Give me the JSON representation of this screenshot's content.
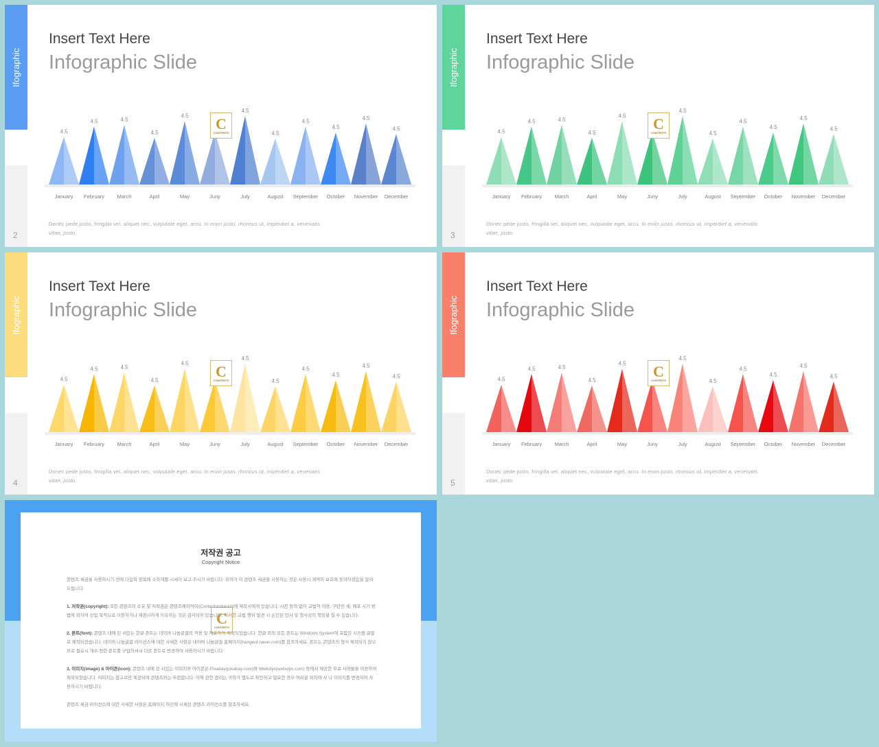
{
  "slides": [
    {
      "side_label": "Ifographic",
      "page_number": "2",
      "title": "Insert Text Here",
      "subtitle": "Infographic Slide",
      "body_plain": "Donec pede justo, fringilla  vel, aliquet nec, vulputate eget, arcu. ",
      "body_italic": "In enim justo, rhoncus ut, imperdiet a, venenatis vitae, justo.",
      "logo": {
        "letter": "C",
        "text": "CONTENTS"
      },
      "accent": "#5b9cf5",
      "colors": [
        "#8fb7f3",
        "#2f7ff3",
        "#6fa2ee",
        "#6690d8",
        "#5c8bd9",
        "#93acde",
        "#4f7fd0",
        "#a5c6ee",
        "#8bb2f0",
        "#3e89f2",
        "#5a80c9",
        "#5c86cf"
      ]
    },
    {
      "side_label": "Ifographic",
      "page_number": "3",
      "title": "Insert Text Here",
      "subtitle": "Infographic Slide",
      "body_plain": "Donec pede justo, fringilla  vel, aliquet nec, vulputate eget, arcu. ",
      "body_italic": "In enim justo, rhoncus ut, imperdiet a, venenatis vitae, justo.",
      "logo": {
        "letter": "C",
        "text": "CONTENTS"
      },
      "accent": "#5ed59a",
      "colors": [
        "#8fddb4",
        "#47c787",
        "#6ed39f",
        "#3cc47e",
        "#8bddb3",
        "#3dc47c",
        "#5ed195",
        "#8fdeb5",
        "#77d6a5",
        "#4ccc8a",
        "#3fc67f",
        "#8fddb6"
      ]
    },
    {
      "side_label": "Ifographic",
      "page_number": "4",
      "title": "Insert Text Here",
      "subtitle": "Infographic Slide",
      "body_plain": "Donec pede justo, fringilla  vel, aliquet nec, vulputate eget, arcu. ",
      "body_italic": "In enim justo, rhoncus ut, imperdiet a, venenatis vitae, justo.",
      "logo": {
        "letter": "C",
        "text": "CONTENTS"
      },
      "accent": "#fddc7e",
      "colors": [
        "#fed86b",
        "#f7b500",
        "#fdd667",
        "#f9be18",
        "#fdd560",
        "#fcc939",
        "#fee4a0",
        "#fdd567",
        "#fdcc42",
        "#f8bb11",
        "#f9c11f",
        "#fdd464"
      ]
    },
    {
      "side_label": "Ifographic",
      "page_number": "5",
      "title": "Insert Text Here",
      "subtitle": "Infographic Slide",
      "body_plain": "Donec pede justo, fringilla  vel, aliquet nec, vulputate eget, arcu. ",
      "body_italic": "In enim justo, rhoncus ut, imperdiet a, venenatis vitae, justo.",
      "logo": {
        "letter": "C",
        "text": "CONTENTS"
      },
      "accent": "#f9806b",
      "colors": [
        "#f4625c",
        "#e5060e",
        "#f67d77",
        "#f0685f",
        "#e52a1c",
        "#f6534d",
        "#f98279",
        "#fbc0bb",
        "#f6534d",
        "#e8070f",
        "#f6736b",
        "#e32b1b"
      ]
    }
  ],
  "chart_data": [
    {
      "type": "bar",
      "title": "",
      "xlabel": "",
      "ylabel": "",
      "categories": [
        "January",
        "February",
        "March",
        "April",
        "May",
        "Juny",
        "July",
        "August",
        "September",
        "October",
        "November",
        "December"
      ],
      "values": [
        4.5,
        4.5,
        4.5,
        4.5,
        4.5,
        4.5,
        4.5,
        4.5,
        4.5,
        4.5,
        4.5,
        4.5
      ],
      "labels": [
        "4.5",
        "4.5",
        "4.5",
        "4.5",
        "4.5",
        "4.5",
        "4.5",
        "4.5",
        "4.5",
        "4.5",
        "4.5",
        "4.5"
      ],
      "peak_heights": [
        0.63,
        0.77,
        0.79,
        0.62,
        0.84,
        0.7,
        0.91,
        0.61,
        0.77,
        0.69,
        0.81,
        0.67
      ],
      "grid": false,
      "legend": "none"
    },
    {
      "type": "bar",
      "title": "",
      "xlabel": "",
      "ylabel": "",
      "categories": [
        "January",
        "February",
        "March",
        "April",
        "May",
        "Juny",
        "July",
        "August",
        "September",
        "October",
        "November",
        "December"
      ],
      "values": [
        4.5,
        4.5,
        4.5,
        4.5,
        4.5,
        4.5,
        4.5,
        4.5,
        4.5,
        4.5,
        4.5,
        4.5
      ],
      "labels": [
        "4.5",
        "4.5",
        "4.5",
        "4.5",
        "4.5",
        "4.5",
        "4.5",
        "4.5",
        "4.5",
        "4.5",
        "4.5",
        "4.5"
      ],
      "peak_heights": [
        0.63,
        0.77,
        0.79,
        0.62,
        0.84,
        0.7,
        0.91,
        0.61,
        0.77,
        0.69,
        0.81,
        0.67
      ],
      "grid": false,
      "legend": "none"
    },
    {
      "type": "bar",
      "title": "",
      "xlabel": "",
      "ylabel": "",
      "categories": [
        "January",
        "February",
        "March",
        "April",
        "May",
        "Juny",
        "July",
        "August",
        "September",
        "October",
        "November",
        "December"
      ],
      "values": [
        4.5,
        4.5,
        4.5,
        4.5,
        4.5,
        4.5,
        4.5,
        4.5,
        4.5,
        4.5,
        4.5,
        4.5
      ],
      "labels": [
        "4.5",
        "4.5",
        "4.5",
        "4.5",
        "4.5",
        "4.5",
        "4.5",
        "4.5",
        "4.5",
        "4.5",
        "4.5",
        "4.5"
      ],
      "peak_heights": [
        0.63,
        0.77,
        0.79,
        0.62,
        0.84,
        0.7,
        0.91,
        0.61,
        0.77,
        0.69,
        0.81,
        0.67
      ],
      "grid": false,
      "legend": "none"
    },
    {
      "type": "bar",
      "title": "",
      "xlabel": "",
      "ylabel": "",
      "categories": [
        "January",
        "February",
        "March",
        "April",
        "May",
        "Juny",
        "July",
        "August",
        "September",
        "October",
        "November",
        "December"
      ],
      "values": [
        4.5,
        4.5,
        4.5,
        4.5,
        4.5,
        4.5,
        4.5,
        4.5,
        4.5,
        4.5,
        4.5,
        4.5
      ],
      "labels": [
        "4.5",
        "4.5",
        "4.5",
        "4.5",
        "4.5",
        "4.5",
        "4.5",
        "4.5",
        "4.5",
        "4.5",
        "4.5",
        "4.5"
      ],
      "peak_heights": [
        0.63,
        0.77,
        0.79,
        0.62,
        0.84,
        0.7,
        0.91,
        0.61,
        0.77,
        0.69,
        0.81,
        0.67
      ],
      "grid": false,
      "legend": "none"
    }
  ],
  "copyright": {
    "title": "저작권 공고",
    "subtitle": "Copyright Notice",
    "logo": {
      "letter": "C",
      "text": "CONTENTS"
    },
    "colors": {
      "top": "#4aa2f0",
      "bottom": "#b3ddf9"
    },
    "intro": "콘텐츠 세금을 사용하시기 전에 다음의 항목에 소하게를 시세이 보고 주시기 바랍니다. 위하기 이 콘텐츠 세금을 사용하는 것은 사용시 계약의 보호에 동의하셨음을 알려 드립니다.",
    "sec1_head": "1. 저작권(copyright): ",
    "sec1_body": "모든 콘텐츠의 소유 및 저작권은 콘텐츠메이커이(Contentstokeout)에 제작시에게 있습니다. 시전 동의 없이 교법적 이용, 구단전 세, 배포 시기 방법에 외하여 상업 목적으로 이용하거나 재판시하게 이유하는 것은 금지되어 있습니다. 이러한 교법 행위 발견 시 손인된 민사 및 형사상의 책임을 질 수 있습니다.",
    "sec2_head": "2. 폰트(font): ",
    "sec2_body": "콘텐츠 내에 된 서있는 한글 폰트는 네이버 나눔글꼴의 적용 및 재료하여 제작되었습니다. 한글 외의 모든 폰트는 Windows System에 포함된 시스템 글꼴로 제작되었습니다. 네이버 나눔글꼴 라이선스에 대한 사세한 사항은 네이버 나눔글꼴 홈페이지(hangeul.naver.com)를 참조하세요. 폰트는 콘텐츠의 형식 제작되지 않으므로 필요시 개수 정한 폰트를 구입하셔서 다른 폰트로 변경하여 사용하시기 바랍니다.",
    "sec3_head": "3. 이미지(image) & 아이콘(icon): ",
    "sec3_body": "콘텐츠 내에 된 서있는 이미지와 아이콘은 Pixabay(pixabay.com)와 Webolys(webolys.com) 등에서 제공한 무료 사작물을 이용하여 제작되었습니다. 이미지는 참고로만 제공되며 콘텐츠와는 무관합니다. 이에 관한 권리는 귀하가 별도로 확인하고 필요한 경우 여러분 위하여 사 나 이미지를 변경하여 사용하시기 바랍니다.",
    "outro": "콘텐츠 세금 라이선스에 대한 사세한 사항은 홈페이지 하단에 시세된 콘텐츠 라이선스를 참조하세요."
  }
}
